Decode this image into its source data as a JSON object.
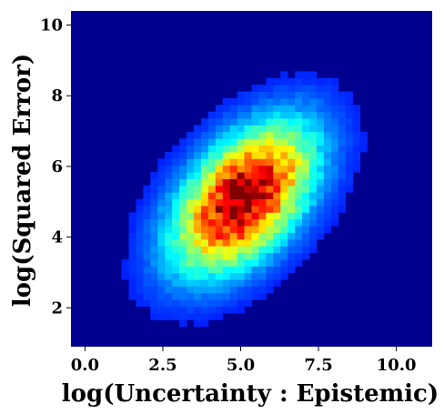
{
  "chart_data": {
    "type": "heatmap",
    "title": "",
    "xlabel": "log(Uncertainty : Epistemic)",
    "ylabel": "log(Squared Error)",
    "xlim": [
      -0.45,
      11.15
    ],
    "ylim": [
      0.9,
      10.4
    ],
    "x_ticks": [
      0.0,
      2.5,
      5.0,
      7.5,
      10.0
    ],
    "x_tick_labels": [
      "0.0",
      "2.5",
      "5.0",
      "7.5",
      "10.0"
    ],
    "y_ticks": [
      2,
      4,
      6,
      8,
      10
    ],
    "y_tick_labels": [
      "2",
      "4",
      "6",
      "8",
      "10"
    ],
    "colormap": "jet",
    "bins": {
      "nx": 50,
      "ny": 50
    },
    "density": {
      "mean_x": 5.1,
      "mean_y": 5.1,
      "sd_x": 1.35,
      "sd_y": 1.25,
      "correlation": 0.5,
      "peak_location": [
        5.0,
        5.3
      ]
    },
    "grid": false,
    "legend": "none",
    "colors": {
      "background_low": "#00008f",
      "peak": "#800000"
    }
  }
}
